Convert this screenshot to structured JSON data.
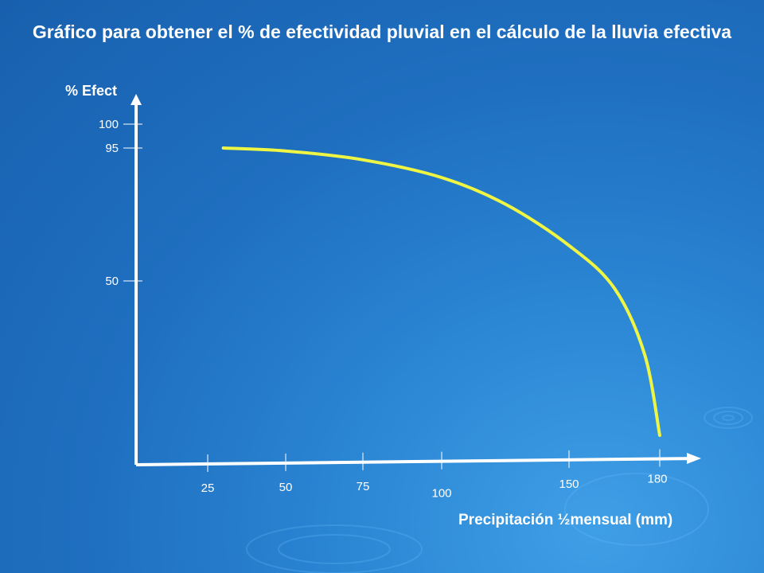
{
  "chart_data": {
    "type": "line",
    "title": "Gráfico para obtener el % de efectividad pluvial en el cálculo de la lluvia efectiva",
    "xlabel": "Precipitación ½mensual (mm)",
    "ylabel": "% Efect",
    "x_ticks": [
      {
        "value": 25,
        "label": "25"
      },
      {
        "value": 50,
        "label": "50"
      },
      {
        "value": 75,
        "label": "75"
      },
      {
        "value": 100,
        "label": "100"
      },
      {
        "value": 150,
        "label": "150"
      },
      {
        "value": 180,
        "label": "180"
      }
    ],
    "y_ticks": [
      {
        "value": 100,
        "label": "100"
      },
      {
        "value": 95,
        "label": "95"
      },
      {
        "value": 50,
        "label": "50"
      }
    ],
    "series": [
      {
        "color": "#eef542",
        "points": [
          {
            "x": 30,
            "y": 95
          },
          {
            "x": 50,
            "y": 94
          },
          {
            "x": 75,
            "y": 91
          },
          {
            "x": 100,
            "y": 85
          },
          {
            "x": 125,
            "y": 76
          },
          {
            "x": 150,
            "y": 62
          },
          {
            "x": 165,
            "y": 48
          },
          {
            "x": 175,
            "y": 30
          },
          {
            "x": 180,
            "y": 8
          }
        ]
      }
    ],
    "colors": {
      "axis": "#ffffff",
      "curve": "#eef542"
    }
  }
}
